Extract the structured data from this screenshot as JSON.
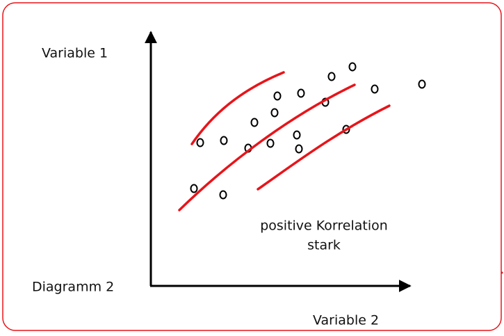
{
  "y_axis_label": "Variable 1",
  "x_axis_label": "Variable 2",
  "diagram_label": "Diagramm 2",
  "annotation": {
    "line1": "positive Korrelation",
    "line2": "stark"
  }
}
